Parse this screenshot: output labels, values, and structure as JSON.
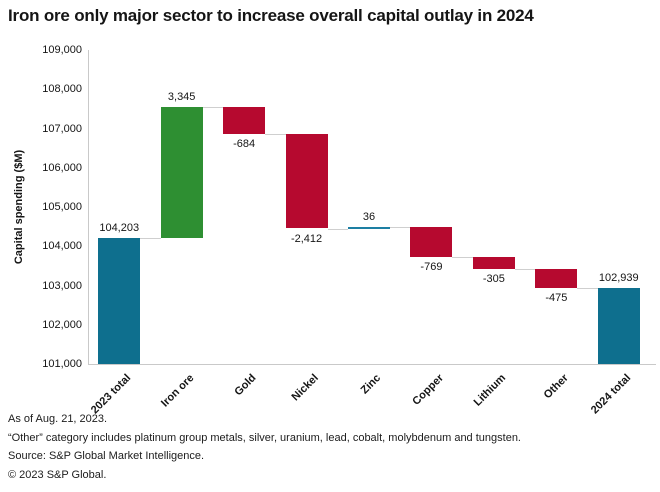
{
  "chart_data": {
    "type": "bar",
    "subtype": "waterfall",
    "title": "Iron ore only major sector to increase overall capital outlay in 2024",
    "ylabel": "Capital spending ($M)",
    "ylim": [
      101000,
      109000
    ],
    "ytick_step": 1000,
    "ytick_labels": [
      "109,000",
      "108,000",
      "107,000",
      "106,000",
      "105,000",
      "104,000",
      "103,000",
      "102,000",
      "101,000"
    ],
    "categories": [
      "2023 total",
      "Iron ore",
      "Gold",
      "Nickel",
      "Zinc",
      "Copper",
      "Lithium",
      "Other",
      "2024 total"
    ],
    "bars": [
      {
        "label": "2023 total",
        "kind": "total",
        "value": 104203,
        "display": "104,203",
        "label_pos": "above"
      },
      {
        "label": "Iron ore",
        "kind": "increase",
        "value": 3345,
        "display": "3,345",
        "label_pos": "above"
      },
      {
        "label": "Gold",
        "kind": "decrease",
        "value": -684,
        "display": "-684",
        "label_pos": "below"
      },
      {
        "label": "Nickel",
        "kind": "decrease",
        "value": -2412,
        "display": "-2,412",
        "label_pos": "below"
      },
      {
        "label": "Zinc",
        "kind": "increase_small",
        "value": 36,
        "display": "36",
        "label_pos": "above"
      },
      {
        "label": "Copper",
        "kind": "decrease",
        "value": -769,
        "display": "-769",
        "label_pos": "below"
      },
      {
        "label": "Lithium",
        "kind": "decrease",
        "value": -305,
        "display": "-305",
        "label_pos": "below"
      },
      {
        "label": "Other",
        "kind": "decrease",
        "value": -475,
        "display": "-475",
        "label_pos": "below"
      },
      {
        "label": "2024 total",
        "kind": "total",
        "value": 102939,
        "display": "102,939",
        "label_pos": "above"
      }
    ],
    "colors": {
      "total": "#0e6f8e",
      "increase": "#2e8f32",
      "increase_small": "#1d7fa3",
      "decrease": "#b6092f",
      "connector": "#cfcfcf",
      "axis": "#c9c9c9"
    },
    "grid": false,
    "legend": false
  },
  "footnotes": {
    "as_of": "As of Aug. 21, 2023.",
    "other_note": "“Other” category includes platinum group metals, silver, uranium, lead, cobalt, molybdenum and tungsten.",
    "source": "Source: S&P Global Market Intelligence.",
    "copyright": "© 2023 S&P Global."
  }
}
